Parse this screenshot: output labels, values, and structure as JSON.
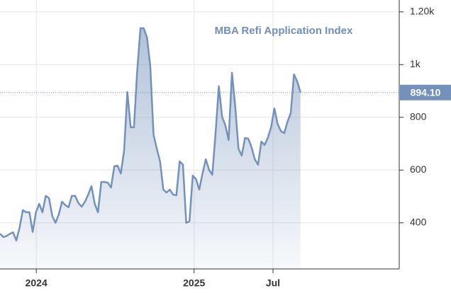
{
  "chart_data": {
    "type": "area",
    "title": "MBA Refi Application Index",
    "color": "#7391bb",
    "grid": true,
    "xlim": [
      2023.77,
      2026.3
    ],
    "xticks": [
      2024,
      2025,
      {
        "value": 2025.5,
        "label": "Jul"
      }
    ],
    "ylim": [
      225,
      1245
    ],
    "yticks": [
      400,
      600,
      800,
      {
        "value": 1000,
        "label": "1k"
      },
      {
        "value": 1200,
        "label": "1.20k"
      }
    ],
    "last_price": {
      "value": 894.1,
      "label": "894.10"
    },
    "x": [
      2023.77,
      2023.7907,
      2023.8114,
      2023.8321,
      2023.8528,
      2023.8735,
      2023.8942,
      2023.9149,
      2023.9356,
      2023.9563,
      2023.977,
      2023.9977,
      2024.0184,
      2024.0391,
      2024.0598,
      2024.0805,
      2024.1012,
      2024.1219,
      2024.1426,
      2024.1633,
      2024.184,
      2024.2047,
      2024.2254,
      2024.2461,
      2024.2668,
      2024.2875,
      2024.3082,
      2024.3289,
      2024.3496,
      2024.3703,
      2024.391,
      2024.4117,
      2024.4324,
      2024.4531,
      2024.4738,
      2024.4945,
      2024.5152,
      2024.5359,
      2024.5566,
      2024.5773,
      2024.598,
      2024.6187,
      2024.6394,
      2024.6601,
      2024.6808,
      2024.7015,
      2024.7222,
      2024.7429,
      2024.7636,
      2024.7843,
      2024.805,
      2024.8257,
      2024.8464,
      2024.8671,
      2024.8878,
      2024.9085,
      2024.9292,
      2024.9499,
      2024.9706,
      2024.9913,
      2025.012,
      2025.0327,
      2025.0534,
      2025.0741,
      2025.0948,
      2025.1155,
      2025.1362,
      2025.1569,
      2025.1776,
      2025.1983,
      2025.219,
      2025.2397,
      2025.2604,
      2025.2811,
      2025.3018,
      2025.3225,
      2025.3432,
      2025.3639,
      2025.3846,
      2025.4053,
      2025.426,
      2025.4467,
      2025.4674,
      2025.4881,
      2025.5088,
      2025.5295,
      2025.5502,
      2025.5709,
      2025.5916,
      2025.6123,
      2025.633,
      2025.6537,
      2025.6744
    ],
    "values": [
      359,
      346,
      350,
      358,
      364,
      333,
      381,
      448,
      440,
      440,
      365,
      440,
      472,
      440,
      502,
      494,
      426,
      400,
      432,
      480,
      467,
      459,
      502,
      502,
      475,
      461,
      480,
      507,
      539,
      472,
      440,
      555,
      555,
      552,
      534,
      614,
      617,
      587,
      673,
      896,
      762,
      762,
      977,
      1138,
      1138,
      1103,
      995,
      735,
      681,
      633,
      526,
      515,
      526,
      507,
      504,
      633,
      620,
      400,
      405,
      579,
      566,
      526,
      587,
      641,
      601,
      582,
      740,
      918,
      802,
      770,
      714,
      969,
      842,
      681,
      655,
      722,
      719,
      687,
      641,
      620,
      708,
      695,
      722,
      762,
      834,
      775,
      748,
      740,
      783,
      816,
      963,
      936,
      894.1
    ]
  }
}
